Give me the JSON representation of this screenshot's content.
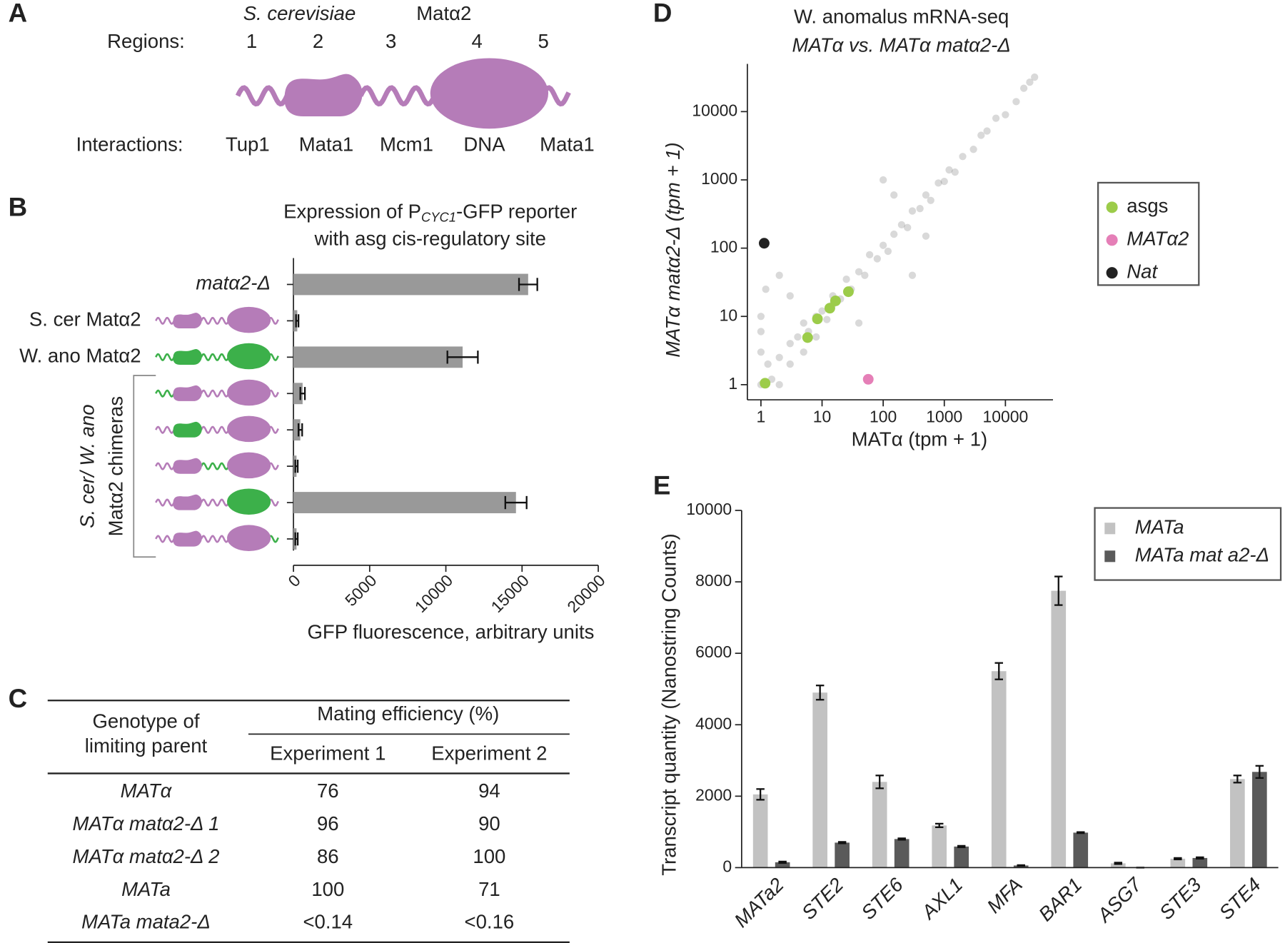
{
  "panel_labels": [
    "A",
    "B",
    "C",
    "D",
    "E"
  ],
  "diagram": {
    "title_species": "S. cerevisiae",
    "title_protein": "Matα2",
    "regions_label": "Regions:",
    "regions": [
      "1",
      "2",
      "3",
      "4",
      "5"
    ],
    "interactions_label": "Interactions:",
    "interactions": [
      "Tup1",
      "Mata1",
      "Mcm1",
      "DNA",
      "Mata1"
    ]
  },
  "chart_data": [
    {
      "type": "bar",
      "orientation": "horizontal",
      "title": "Expression of P",
      "title_subscript": "CYC1",
      "title_suffix": "-GFP reporter",
      "subtitle": "with asg cis-regulatory site",
      "categories": [
        "matα2-Δ",
        "S. cer Matα2",
        "W. ano Matα2",
        null,
        null,
        null,
        null,
        null
      ],
      "group_label": [
        "S. cer/ W. ano",
        "Matα2 chimeras"
      ],
      "values": [
        15400,
        250,
        11100,
        600,
        450,
        200,
        14600,
        200
      ],
      "errors": [
        600,
        80,
        1000,
        150,
        120,
        80,
        700,
        80
      ],
      "color": "#999999",
      "xlabel": "GFP fluorescence, arbitrary units",
      "xlim": [
        0,
        20000
      ],
      "xticks": [
        0,
        5000,
        10000,
        15000,
        20000
      ]
    },
    {
      "type": "scatter",
      "title": "W. anomalus mRNA-seq",
      "subtitle": "MATα vs. MATα matα2-Δ",
      "xlabel": "MATα (tpm + 1)",
      "ylabel": "MATα matα2-Δ (tpm + 1)",
      "xscale": "log",
      "yscale": "log",
      "xlim": [
        0.6,
        60000
      ],
      "ylim": [
        0.6,
        50000
      ],
      "xticks": [
        1,
        10,
        100,
        1000,
        10000
      ],
      "yticks": [
        1,
        10,
        100,
        1000,
        10000
      ],
      "legend": "right",
      "series": [
        {
          "color": "#000000",
          "opacity": 0.15,
          "x": [
            1,
            1,
            1,
            1,
            1.3,
            1.5,
            2,
            2,
            3,
            3,
            4,
            5,
            5,
            6,
            8,
            8,
            10,
            12,
            15,
            15,
            20,
            25,
            30,
            40,
            50,
            60,
            80,
            100,
            120,
            150,
            200,
            250,
            300,
            400,
            500,
            600,
            800,
            1000,
            1200,
            1500,
            2000,
            3000,
            4000,
            5000,
            7000,
            10000,
            15000,
            20000,
            25000,
            30000,
            100,
            300,
            2,
            40,
            500,
            150,
            1.2,
            3
          ],
          "y": [
            1,
            3,
            6,
            10,
            2,
            1.2,
            2.5,
            1,
            4,
            2,
            5,
            3,
            8,
            6,
            10,
            5,
            12,
            9,
            20,
            15,
            18,
            35,
            25,
            45,
            40,
            80,
            70,
            110,
            90,
            160,
            220,
            200,
            350,
            380,
            600,
            500,
            900,
            950,
            1400,
            1300,
            2200,
            2800,
            4500,
            5200,
            8000,
            9000,
            14000,
            22000,
            27000,
            32000,
            1000,
            40,
            40,
            8,
            150,
            600,
            25,
            20
          ]
        },
        {
          "name": "asgs",
          "color": "#9ccc4a",
          "x": [
            1.17,
            5.8,
            8.4,
            13.4,
            16.6,
            27
          ],
          "y": [
            1.05,
            4.9,
            9.2,
            13.2,
            16.9,
            23
          ]
        },
        {
          "name": "MATα2",
          "color": "#e57fb7",
          "x": [
            57
          ],
          "y": [
            1.2
          ]
        },
        {
          "name": "Nat",
          "color": "#222222",
          "x": [
            1.13
          ],
          "y": [
            118
          ]
        }
      ]
    },
    {
      "type": "grouped_bar",
      "ylabel": "Transcript quantity (Nanostring Counts)",
      "categories": [
        "MATa2",
        "STE2",
        "STE6",
        "AXL1",
        "MFA",
        "BAR1",
        "ASG7",
        "STE3",
        "STE4"
      ],
      "ylim": [
        0,
        10000
      ],
      "yticks": [
        0,
        2000,
        4000,
        6000,
        8000,
        10000
      ],
      "legend": "upper right",
      "series": [
        {
          "name": "MATa",
          "color": "#c2c2c2",
          "values": [
            2050,
            4900,
            2400,
            1180,
            5500,
            7750,
            120,
            250,
            2480
          ],
          "errors": [
            150,
            200,
            180,
            50,
            230,
            400,
            20,
            20,
            100
          ]
        },
        {
          "name": "MATa mat a2-Δ",
          "color": "#5a5a5a",
          "values": [
            150,
            700,
            800,
            590,
            60,
            980,
            0,
            270,
            2680
          ],
          "errors": [
            20,
            20,
            20,
            20,
            10,
            15,
            0,
            20,
            170
          ]
        }
      ]
    }
  ],
  "table": {
    "header": [
      "Genotype of",
      "limiting parent"
    ],
    "group_header": "Mating efficiency (%)",
    "columns": [
      "Experiment 1",
      "Experiment 2"
    ],
    "rows": [
      [
        "MATα",
        76,
        94
      ],
      [
        "MATα matα2-Δ 1",
        96,
        90
      ],
      [
        "MATα matα2-Δ 2",
        86,
        100
      ],
      [
        "MATa",
        100,
        71
      ],
      [
        "MATa mata2-Δ",
        "<0.14",
        "<0.16"
      ]
    ]
  }
}
